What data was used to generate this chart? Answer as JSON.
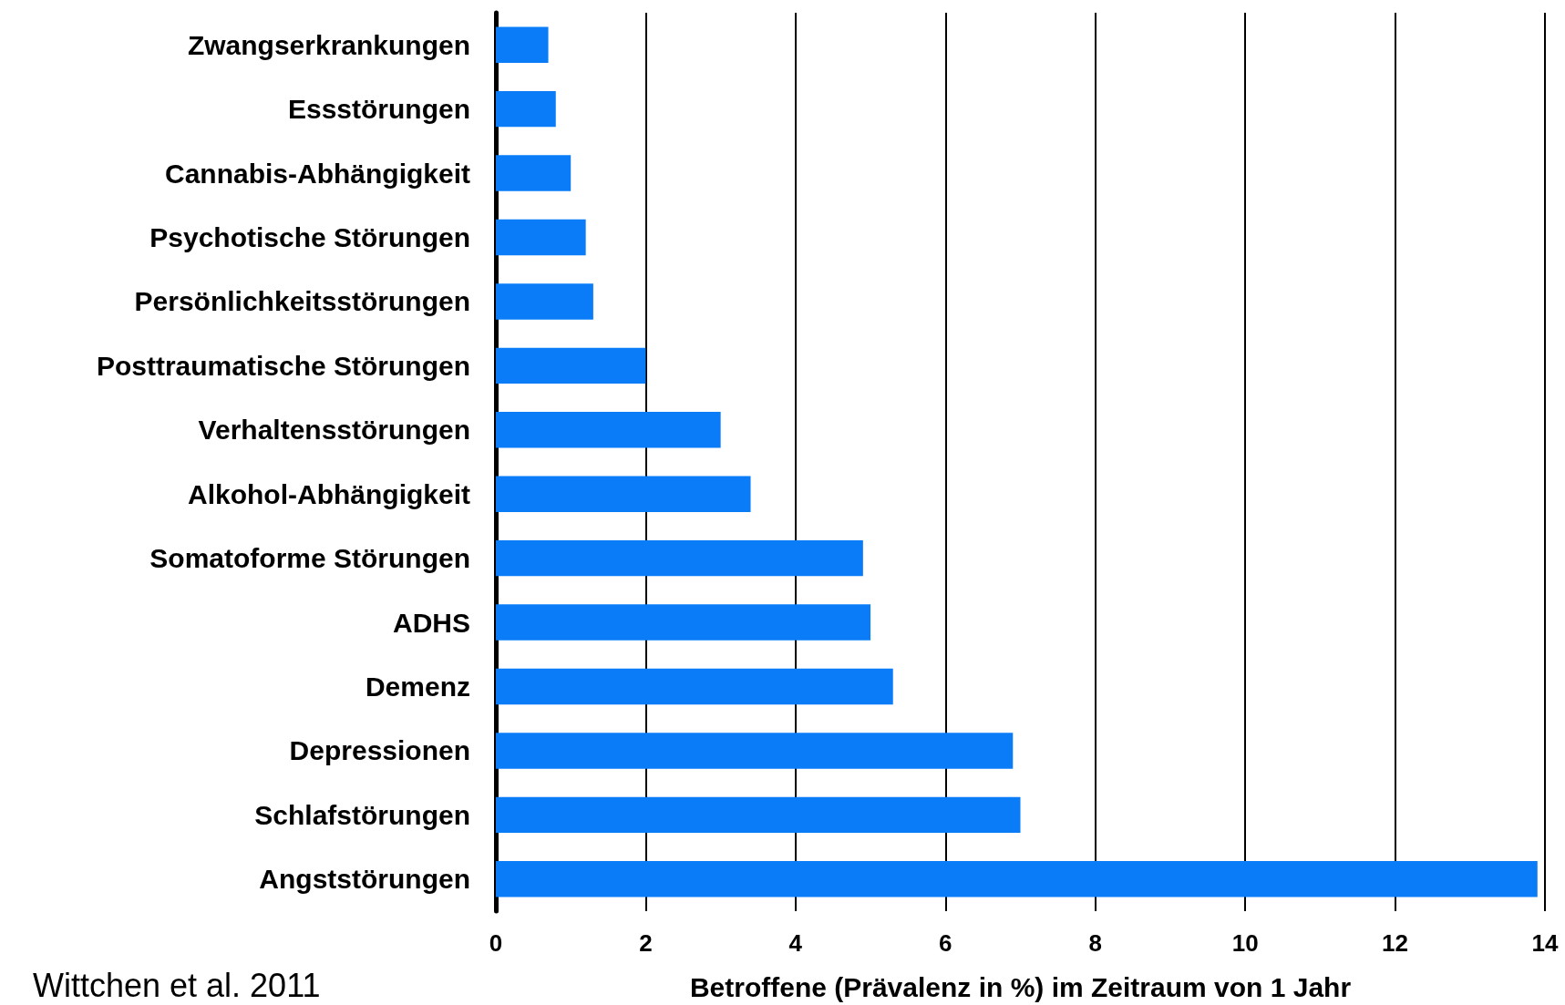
{
  "chart_data": {
    "type": "bar",
    "orientation": "horizontal",
    "xlabel": "Betroffene (Prävalenz in %) im Zeitraum von 1 Jahr",
    "categories": [
      "Zwangserkrankungen",
      "Essstörungen",
      "Cannabis-Abhängigkeit",
      "Psychotische Störungen",
      "Persönlichkeitsstörungen",
      "Posttraumatische Störungen",
      "Verhaltensstörungen",
      "Alkohol-Abhängigkeit",
      "Somatoforme Störungen",
      "ADHS",
      "Demenz",
      "Depressionen",
      "Schlafstörungen",
      "Angststörungen"
    ],
    "values": [
      0.7,
      0.8,
      1.0,
      1.2,
      1.3,
      2.0,
      3.0,
      3.4,
      4.9,
      5.0,
      5.3,
      6.9,
      7.0,
      13.9
    ],
    "color": "#0a7cf8",
    "xlim": [
      0,
      14
    ],
    "xticks": [
      0,
      2,
      4,
      6,
      8,
      10,
      12,
      14
    ],
    "grid": "x",
    "annotations": [
      "Wittchen et al. 2011"
    ]
  }
}
